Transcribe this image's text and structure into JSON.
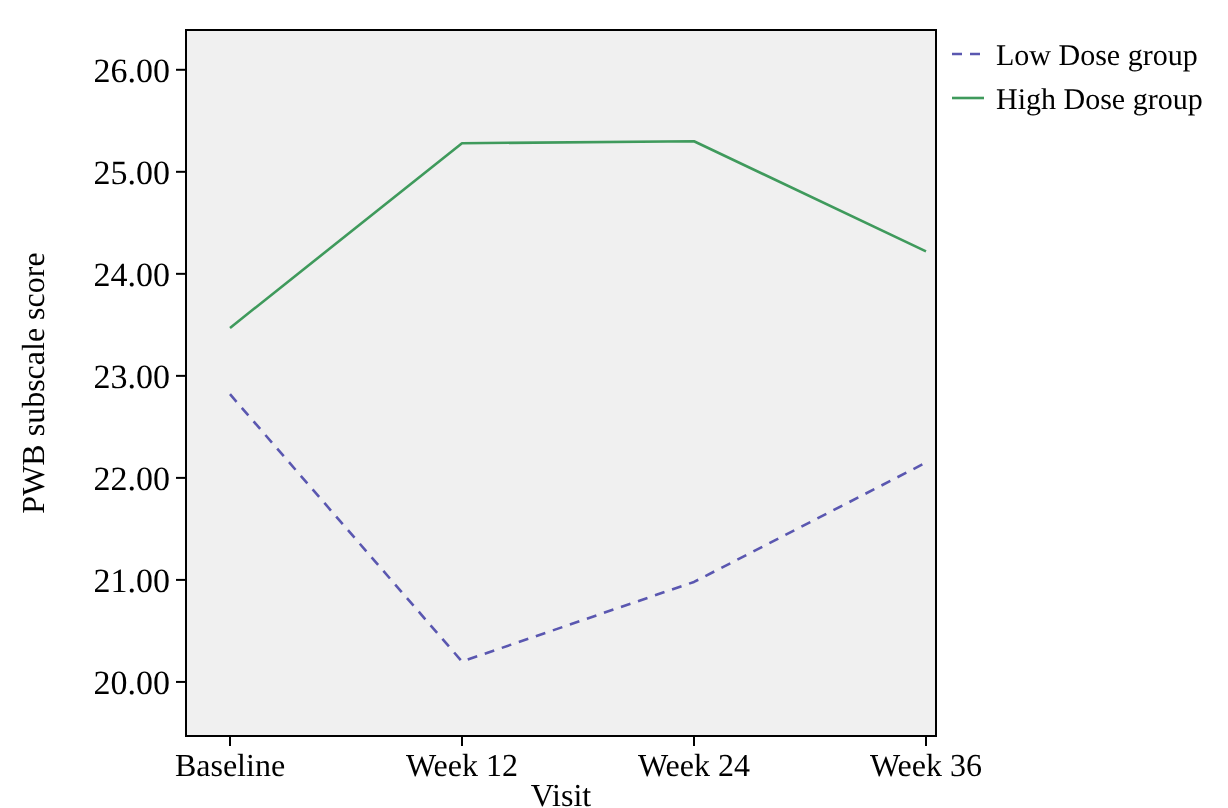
{
  "chart_data": {
    "type": "line",
    "xlabel": "Visit",
    "ylabel": "PWB subscale score",
    "categories": [
      "Baseline",
      "Week 12",
      "Week 24",
      "Week 36"
    ],
    "series": [
      {
        "name": "Low Dose group",
        "color": "#5a57b0",
        "line_style": "dashed",
        "values": [
          22.82,
          20.2,
          20.98,
          22.15
        ]
      },
      {
        "name": "High Dose group",
        "color": "#3f9a5c",
        "line_style": "solid",
        "values": [
          23.47,
          25.28,
          25.3,
          24.22
        ]
      }
    ],
    "ylim": [
      19.47,
      26.39
    ],
    "yticks": [
      {
        "value": 20,
        "label": "20.00"
      },
      {
        "value": 21,
        "label": "21.00"
      },
      {
        "value": 22,
        "label": "22.00"
      },
      {
        "value": 23,
        "label": "23.00"
      },
      {
        "value": 24,
        "label": "24.00"
      },
      {
        "value": 25,
        "label": "25.00"
      },
      {
        "value": 26,
        "label": "26.00"
      }
    ],
    "grid": false,
    "legend": "top right",
    "marker": "none"
  }
}
